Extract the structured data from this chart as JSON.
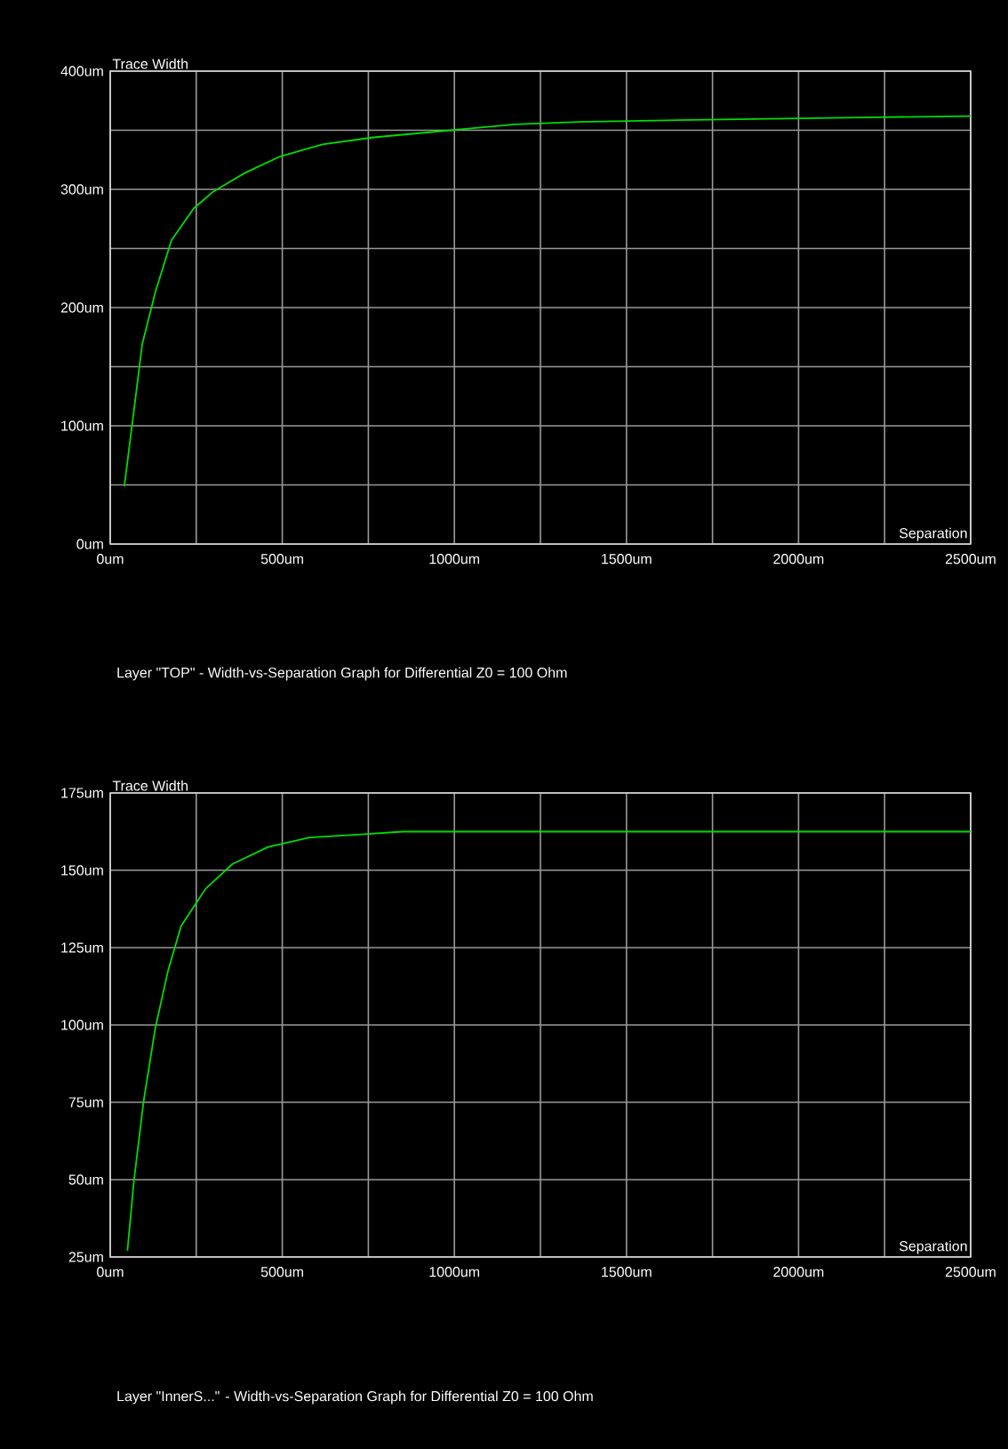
{
  "chart_data": [
    {
      "type": "line",
      "title": "Layer \"TOP\" - Width-vs-Separation Graph for Differential Z0 = 100 Ohm",
      "xlabel": "Separation",
      "ylabel": "Trace Width",
      "color": "#00dd00",
      "grid": true,
      "x": [
        41,
        65,
        93,
        131,
        178,
        243,
        299,
        392,
        495,
        617,
        766,
        990,
        1177,
        1364,
        1738,
        2233,
        2500
      ],
      "values": [
        49,
        104,
        169,
        213,
        257,
        284,
        298,
        314,
        328,
        338,
        344,
        350,
        355,
        357,
        359,
        361,
        362
      ],
      "xlim": [
        0,
        2500
      ],
      "ylim": [
        0,
        400
      ],
      "xticks": [
        {
          "value": 0,
          "label": "0um"
        },
        {
          "value": 250,
          "label": null
        },
        {
          "value": 500,
          "label": "500um"
        },
        {
          "value": 750,
          "label": null
        },
        {
          "value": 1000,
          "label": "1000um"
        },
        {
          "value": 1250,
          "label": null
        },
        {
          "value": 1500,
          "label": "1500um"
        },
        {
          "value": 1750,
          "label": null
        },
        {
          "value": 2000,
          "label": "2000um"
        },
        {
          "value": 2250,
          "label": null
        },
        {
          "value": 2500,
          "label": "2500um"
        }
      ],
      "yticks": [
        {
          "value": 0,
          "label": "0um"
        },
        {
          "value": 50,
          "label": null
        },
        {
          "value": 100,
          "label": "100um"
        },
        {
          "value": 150,
          "label": null
        },
        {
          "value": 200,
          "label": "200um"
        },
        {
          "value": 250,
          "label": null
        },
        {
          "value": 300,
          "label": "300um"
        },
        {
          "value": 350,
          "label": null
        },
        {
          "value": 400,
          "label": "400um"
        }
      ]
    },
    {
      "type": "line",
      "title": "Layer \"InnerS...\" - Width-vs-Separation Graph for Differential Z0 = 100 Ohm",
      "xlabel": "Separation",
      "ylabel": "Trace Width",
      "color": "#00dd00",
      "grid": true,
      "x": [
        50,
        69,
        97,
        131,
        168,
        206,
        277,
        355,
        458,
        579,
        729,
        850,
        2500
      ],
      "values": [
        27,
        49.7,
        75.3,
        99,
        117.5,
        132,
        144,
        152,
        157.5,
        160.6,
        161.6,
        162.5,
        162.5
      ],
      "xlim": [
        0,
        2500
      ],
      "ylim": [
        25,
        175
      ],
      "xticks": [
        {
          "value": 0,
          "label": "0um"
        },
        {
          "value": 250,
          "label": null
        },
        {
          "value": 500,
          "label": "500um"
        },
        {
          "value": 750,
          "label": null
        },
        {
          "value": 1000,
          "label": "1000um"
        },
        {
          "value": 1250,
          "label": null
        },
        {
          "value": 1500,
          "label": "1500um"
        },
        {
          "value": 1750,
          "label": null
        },
        {
          "value": 2000,
          "label": "2000um"
        },
        {
          "value": 2250,
          "label": null
        },
        {
          "value": 2500,
          "label": "2500um"
        }
      ],
      "yticks": [
        {
          "value": 25,
          "label": "25um"
        },
        {
          "value": 50,
          "label": "50um"
        },
        {
          "value": 75,
          "label": "75um"
        },
        {
          "value": 100,
          "label": "100um"
        },
        {
          "value": 125,
          "label": "125um"
        },
        {
          "value": 150,
          "label": "150um"
        },
        {
          "value": 175,
          "label": "175um"
        }
      ]
    }
  ]
}
